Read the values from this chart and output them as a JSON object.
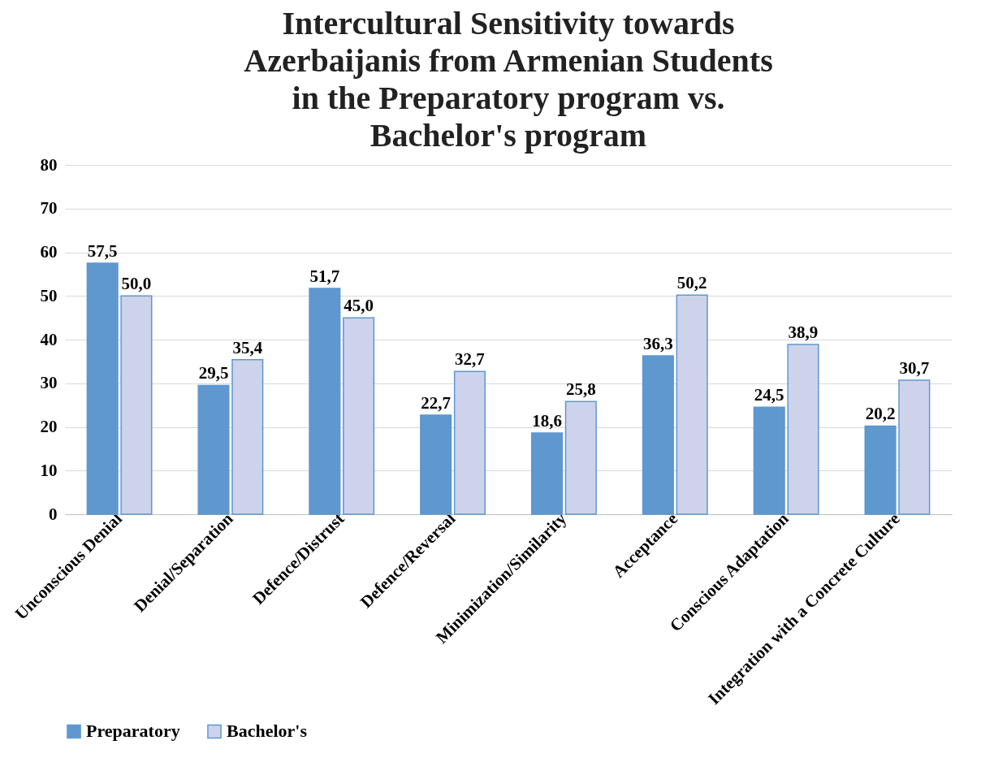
{
  "chart_data": {
    "type": "bar",
    "title": [
      "Intercultural Sensitivity towards",
      "Azerbaijanis from Armenian Students",
      "in the Preparatory program vs.",
      "Bachelor's program"
    ],
    "categories": [
      "Unconscious Denial",
      "Denial/Separation",
      "Defence/Distrust",
      "Defence/Reversal",
      "Minimization/Similarity",
      "Acceptance",
      "Conscious Adaptation",
      "Integration with a Concrete Culture"
    ],
    "series": [
      {
        "name": "Preparatory",
        "color": "#5f97cf",
        "values": [
          57.5,
          29.5,
          51.7,
          22.7,
          18.6,
          36.3,
          24.5,
          20.2
        ],
        "value_labels": [
          "57,5",
          "29,5",
          "51,7",
          "22,7",
          "18,6",
          "36,3",
          "24,5",
          "20,2"
        ]
      },
      {
        "name": "Bachelor's",
        "color": "#cdd3ea",
        "values": [
          50.0,
          35.4,
          45.0,
          32.7,
          25.8,
          50.2,
          38.9,
          30.7
        ],
        "value_labels": [
          "50,0",
          "35,4",
          "45,0",
          "32,7",
          "25,8",
          "50,2",
          "38,9",
          "30,7"
        ]
      }
    ],
    "ylim": [
      0,
      80
    ],
    "yticks": [
      0,
      10,
      20,
      30,
      40,
      50,
      60,
      70,
      80
    ],
    "grid": "y",
    "legend": "bottom"
  }
}
